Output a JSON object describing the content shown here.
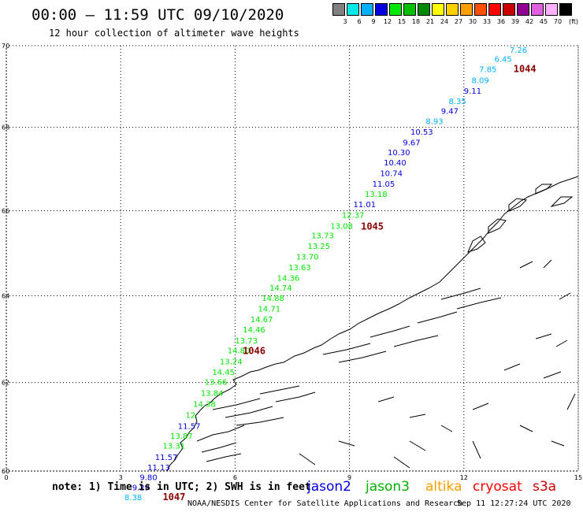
{
  "title": "00:00 – 11:59 UTC 09/10/2020",
  "subtitle": "12 hour collection of altimeter wave heights",
  "scale": {
    "unit": "(ft)",
    "bins": [
      {
        "label": "3",
        "color": "#808080"
      },
      {
        "label": "6",
        "color": "#00e8e8"
      },
      {
        "label": "9",
        "color": "#00b0ff"
      },
      {
        "label": "12",
        "color": "#0000e0"
      },
      {
        "label": "15",
        "color": "#00e800"
      },
      {
        "label": "18",
        "color": "#00c000"
      },
      {
        "label": "21",
        "color": "#008800"
      },
      {
        "label": "24",
        "color": "#ffff00"
      },
      {
        "label": "27",
        "color": "#ffd000"
      },
      {
        "label": "30",
        "color": "#ffa000"
      },
      {
        "label": "33",
        "color": "#ff5000"
      },
      {
        "label": "36",
        "color": "#ff0000"
      },
      {
        "label": "39",
        "color": "#c80000"
      },
      {
        "label": "42",
        "color": "#900090"
      },
      {
        "label": "45",
        "color": "#e060e0"
      },
      {
        "label": "70",
        "color": "#ffb0ff"
      },
      {
        "label": "",
        "color": "#000000"
      }
    ]
  },
  "axes": {
    "lat_ticks": [
      "70",
      "68",
      "66",
      "64",
      "62",
      "60"
    ],
    "lon_ticks": [
      "0",
      "3",
      "6",
      "9",
      "12",
      "15"
    ]
  },
  "observations": [
    {
      "lon": 13.2,
      "lat": 69.82,
      "value": "7.26",
      "color": "#00b0ff"
    },
    {
      "lon": 12.8,
      "lat": 69.6,
      "value": "6.45",
      "color": "#00b0ff"
    },
    {
      "lon": 12.4,
      "lat": 69.35,
      "value": "7.85",
      "color": "#00b0ff"
    },
    {
      "lon": 12.2,
      "lat": 69.08,
      "value": "8.09",
      "color": "#00b0ff"
    },
    {
      "lon": 12.0,
      "lat": 68.82,
      "value": "9.11",
      "color": "#0000e0"
    },
    {
      "lon": 11.6,
      "lat": 68.57,
      "value": "8.35",
      "color": "#00b0ff"
    },
    {
      "lon": 11.4,
      "lat": 68.33,
      "value": "9.47",
      "color": "#0000e0"
    },
    {
      "lon": 11.0,
      "lat": 68.08,
      "value": "8.93",
      "color": "#00b0ff"
    },
    {
      "lon": 10.6,
      "lat": 67.82,
      "value": "10.53",
      "color": "#0000e0"
    },
    {
      "lon": 10.4,
      "lat": 67.57,
      "value": "9.67",
      "color": "#0000e0"
    },
    {
      "lon": 10.0,
      "lat": 67.33,
      "value": "10.30",
      "color": "#0000e0"
    },
    {
      "lon": 9.9,
      "lat": 67.08,
      "value": "10.40",
      "color": "#0000e0"
    },
    {
      "lon": 9.8,
      "lat": 66.83,
      "value": "10.74",
      "color": "#0000e0"
    },
    {
      "lon": 9.6,
      "lat": 66.57,
      "value": "11.05",
      "color": "#0000e0"
    },
    {
      "lon": 9.4,
      "lat": 66.33,
      "value": "13.18",
      "color": "#00e800"
    },
    {
      "lon": 9.1,
      "lat": 66.08,
      "value": "11.01",
      "color": "#0000e0"
    },
    {
      "lon": 8.8,
      "lat": 65.83,
      "value": "12.37",
      "color": "#00e800"
    },
    {
      "lon": 8.5,
      "lat": 65.57,
      "value": "13.08",
      "color": "#00e800"
    },
    {
      "lon": 8.0,
      "lat": 65.35,
      "value": "13.73",
      "color": "#00e800"
    },
    {
      "lon": 7.9,
      "lat": 65.1,
      "value": "13.25",
      "color": "#00e800"
    },
    {
      "lon": 7.6,
      "lat": 64.85,
      "value": "13.70",
      "color": "#00e800"
    },
    {
      "lon": 7.4,
      "lat": 64.6,
      "value": "13.63",
      "color": "#00e800"
    },
    {
      "lon": 7.1,
      "lat": 64.35,
      "value": "14.36",
      "color": "#00e800"
    },
    {
      "lon": 6.9,
      "lat": 64.12,
      "value": "14.74",
      "color": "#00e800"
    },
    {
      "lon": 6.7,
      "lat": 63.88,
      "value": "14.88",
      "color": "#00e800"
    },
    {
      "lon": 6.6,
      "lat": 63.63,
      "value": "14.71",
      "color": "#00e800"
    },
    {
      "lon": 6.4,
      "lat": 63.39,
      "value": "14.67",
      "color": "#00e800"
    },
    {
      "lon": 6.2,
      "lat": 63.15,
      "value": "14.46",
      "color": "#00e800"
    },
    {
      "lon": 6.0,
      "lat": 62.9,
      "value": "13.73",
      "color": "#00e800"
    },
    {
      "lon": 5.8,
      "lat": 62.67,
      "value": "14.80",
      "color": "#00e800"
    },
    {
      "lon": 5.6,
      "lat": 62.42,
      "value": "13.24",
      "color": "#00e800"
    },
    {
      "lon": 5.4,
      "lat": 62.17,
      "value": "14.45",
      "color": "#00e800"
    },
    {
      "lon": 5.2,
      "lat": 61.95,
      "value": "13.66",
      "color": "#00e800"
    },
    {
      "lon": 5.1,
      "lat": 61.7,
      "value": "13.84",
      "color": "#00e800"
    },
    {
      "lon": 4.9,
      "lat": 61.45,
      "value": "14.38",
      "color": "#00e800"
    },
    {
      "lon": 4.7,
      "lat": 61.2,
      "value": "12.",
      "color": "#00e800"
    },
    {
      "lon": 4.5,
      "lat": 60.95,
      "value": "11.57",
      "color": "#0000e0"
    },
    {
      "lon": 4.3,
      "lat": 60.73,
      "value": "13.87",
      "color": "#00e800"
    },
    {
      "lon": 4.1,
      "lat": 60.5,
      "value": "13.31",
      "color": "#00e800"
    },
    {
      "lon": 3.9,
      "lat": 60.25,
      "value": "11.57",
      "color": "#0000e0"
    },
    {
      "lon": 3.7,
      "lat": 60.02,
      "value": "11.13",
      "color": "#0000e0"
    },
    {
      "lon": 3.5,
      "lat": 59.8,
      "value": "9.80",
      "color": "#0000e0"
    },
    {
      "lon": 3.3,
      "lat": 59.57,
      "value": "9.29",
      "color": "#0000e0"
    },
    {
      "lon": 3.1,
      "lat": 59.35,
      "value": "8.38",
      "color": "#00b0ff"
    }
  ],
  "buoys": [
    {
      "lon": 13.3,
      "lat": 69.35,
      "value": "1044"
    },
    {
      "lon": 9.3,
      "lat": 65.55,
      "value": "1045"
    },
    {
      "lon": 6.2,
      "lat": 62.65,
      "value": "1046"
    },
    {
      "lon": 4.1,
      "lat": 59.35,
      "value": "1047"
    }
  ],
  "note": "note: 1) Time is in UTC; 2) SWH is in feet",
  "legend": [
    {
      "label": "jason2",
      "color": "#0000e0"
    },
    {
      "label": "jason3",
      "color": "#00b000"
    },
    {
      "label": "altika",
      "color": "#ffa000"
    },
    {
      "label": "cryosat",
      "color": "#ff0000"
    },
    {
      "label": "s3a",
      "color": "#c80000"
    }
  ],
  "credit": "NOAA/NESDIS Center for Satellite Applications and Research",
  "timestamp": "Sep 11 12:27:24 UTC 2020",
  "colors": {
    "buoy": "#8b0000",
    "coast": "#000000",
    "grid": "#000000"
  }
}
